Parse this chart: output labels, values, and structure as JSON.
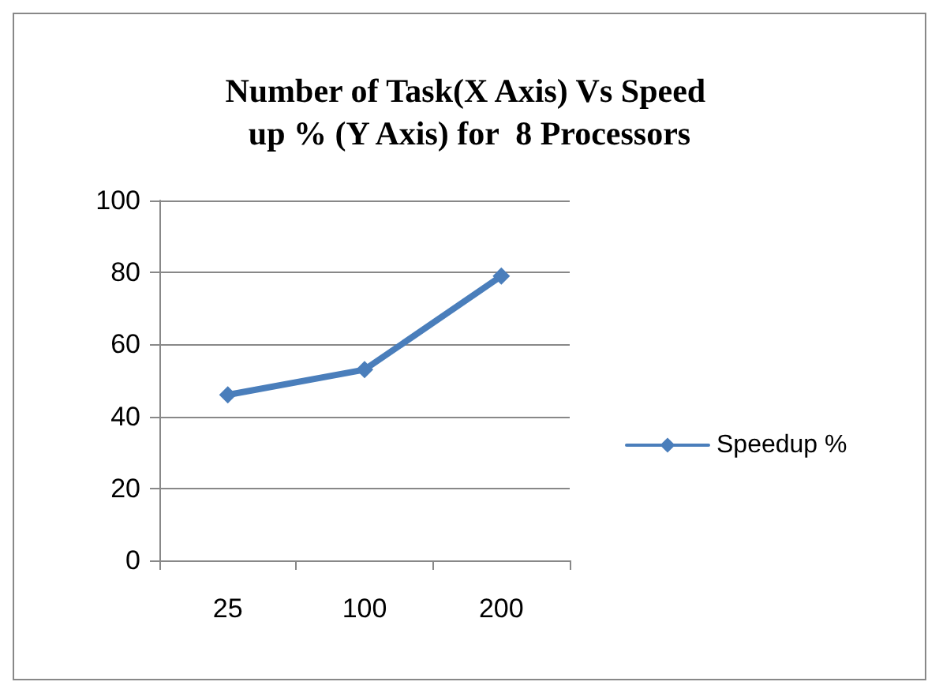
{
  "chart_data": {
    "type": "line",
    "title": "Number of Task(X Axis) Vs Speed up % (Y Axis) for  8 Processors",
    "categories": [
      "25",
      "100",
      "200"
    ],
    "series": [
      {
        "name": "Speedup %",
        "color": "#4a7ebb",
        "values": [
          46,
          53,
          79
        ]
      }
    ],
    "ylim": [
      0,
      100
    ],
    "yticks": [
      0,
      20,
      40,
      60,
      80,
      100
    ],
    "grid": "y",
    "legend": "right",
    "marker": "diamond",
    "line_style": "solid"
  }
}
